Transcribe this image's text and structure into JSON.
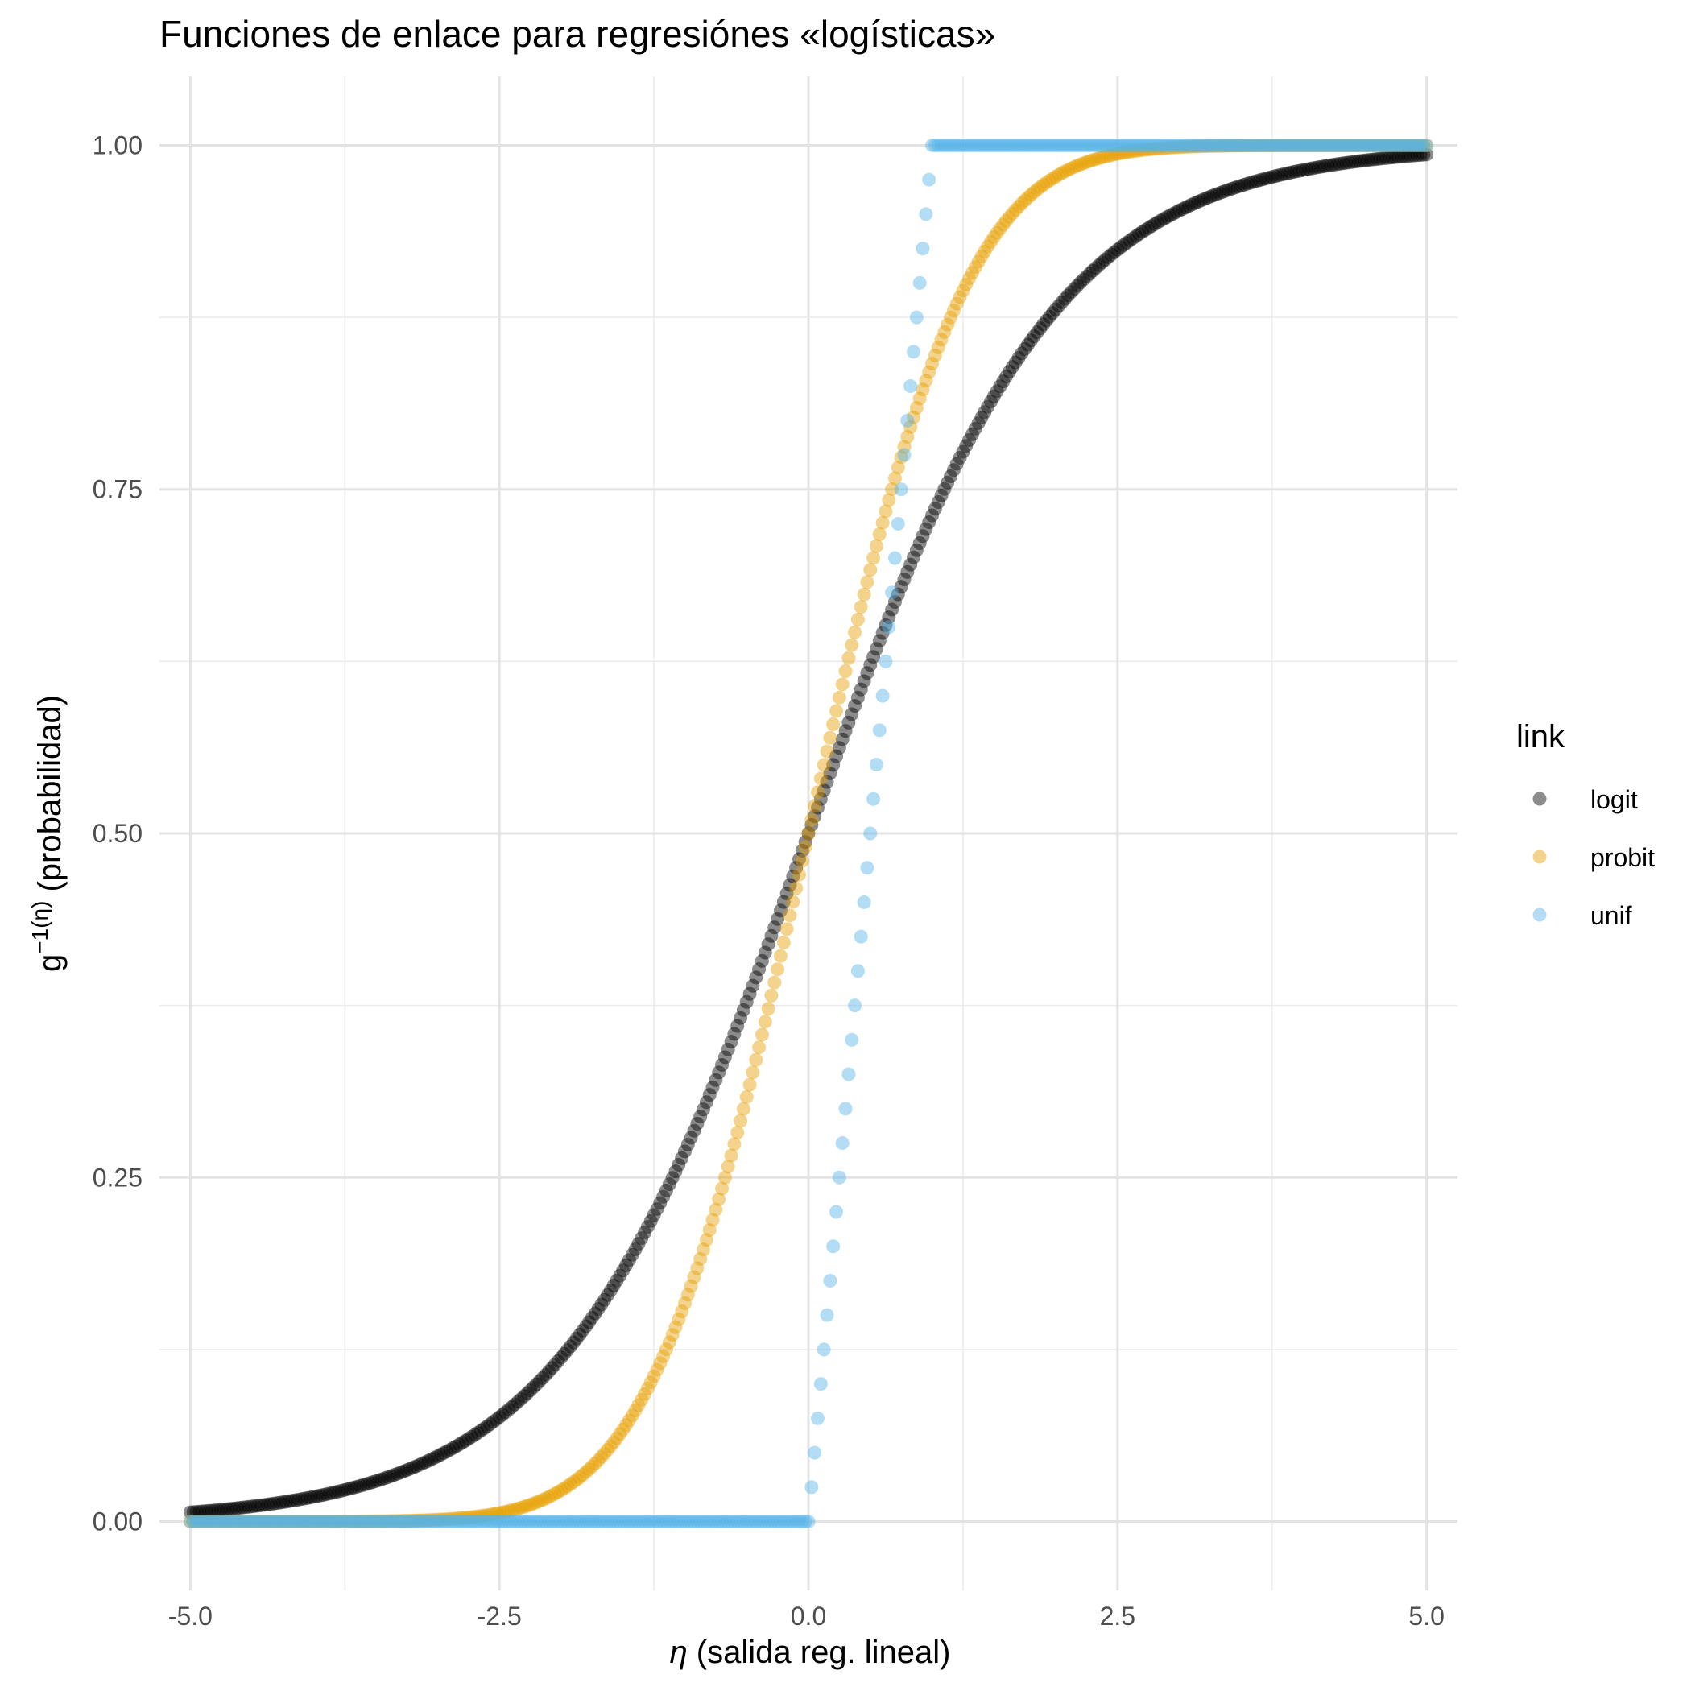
{
  "chart_data": {
    "type": "scatter",
    "title": "Funciones de enlace para regresiónes «logísticas»",
    "xlabel_symbol": "η",
    "xlabel_text": " (salida reg. lineal)",
    "ylabel_base": "g",
    "ylabel_sup": "−1(η)",
    "ylabel_text": " (probabilidad)",
    "xlim": [
      -5.25,
      5.25
    ],
    "ylim": [
      -0.05,
      1.05
    ],
    "x_ticks": [
      -5.0,
      -2.5,
      0.0,
      2.5,
      5.0
    ],
    "x_tick_labels": [
      "-5.0",
      "-2.5",
      "0.0",
      "2.5",
      "5.0"
    ],
    "y_ticks": [
      0.0,
      0.25,
      0.5,
      0.75,
      1.0
    ],
    "y_tick_labels": [
      "0.00",
      "0.25",
      "0.50",
      "0.75",
      "1.00"
    ],
    "grid": true,
    "legend_position": "right",
    "legend_title": "link",
    "x_range": [
      -5,
      5
    ],
    "x_step": 0.025,
    "series": [
      {
        "name": "logit",
        "function": "1/(1+exp(-x))",
        "color": "#000000",
        "opacity": 0.45
      },
      {
        "name": "probit",
        "function": "pnorm(x)",
        "color": "#E69F00",
        "opacity": 0.45
      },
      {
        "name": "unif",
        "function": "punif(x, 0, 1)",
        "color": "#56B4E9",
        "opacity": 0.45
      }
    ]
  }
}
